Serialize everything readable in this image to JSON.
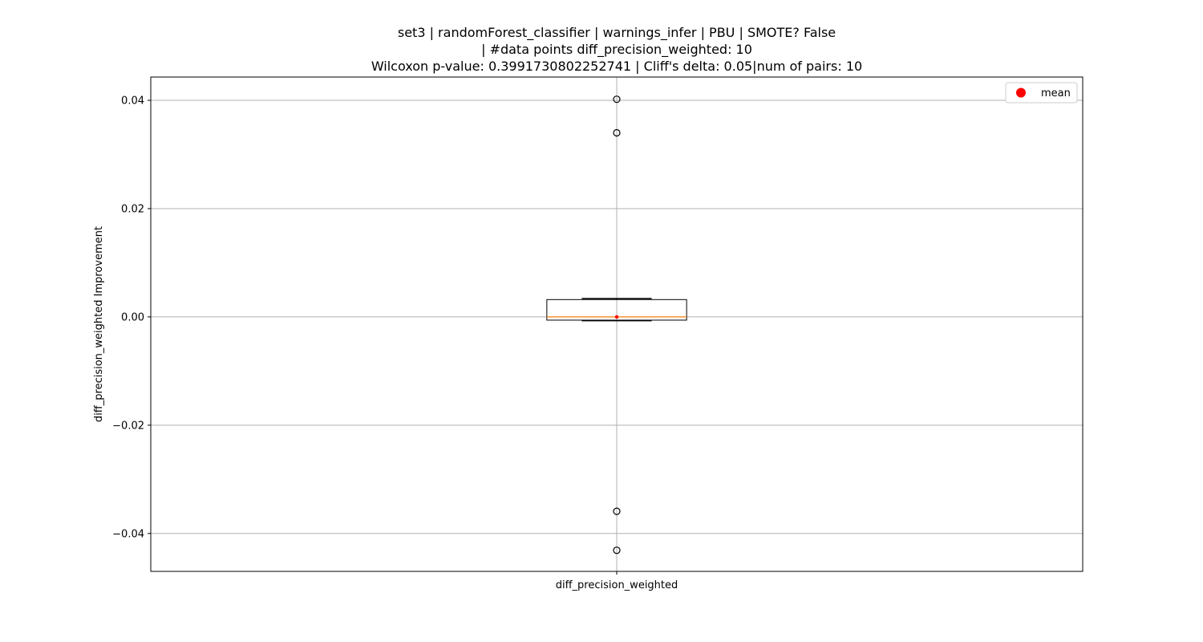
{
  "chart_data": {
    "type": "box",
    "title_lines": [
      "set3 | randomForest_classifier | warnings_infer | PBU | SMOTE? False",
      "| #data points diff_precision_weighted: 10",
      "Wilcoxon p-value: 0.3991730802252741 | Cliff's delta: 0.05|num of pairs: 10"
    ],
    "ylabel": "diff_precision_weighted Improvement",
    "xlabel": "",
    "categories": [
      "diff_precision_weighted"
    ],
    "ylim": [
      -0.047,
      0.0443
    ],
    "yticks": [
      -0.04,
      -0.02,
      0.0,
      0.02,
      0.04
    ],
    "ytick_labels": [
      "−0.04",
      "−0.02",
      "0.00",
      "0.02",
      "0.04"
    ],
    "grid": true,
    "legend": {
      "placement": "top-right",
      "entries": [
        "mean"
      ]
    },
    "colors": {
      "box": "#000000",
      "median": "#ff7f0e",
      "mean": "#ff0000",
      "grid": "#b0b0b0"
    },
    "boxes": [
      {
        "name": "diff_precision_weighted",
        "q1": -0.0006,
        "median": 0.0,
        "q3": 0.0032,
        "whisker_low": -0.0007,
        "whisker_high": 0.0034,
        "mean": 0.0,
        "outliers": [
          0.0402,
          0.034,
          -0.0359,
          -0.0431
        ]
      }
    ]
  }
}
